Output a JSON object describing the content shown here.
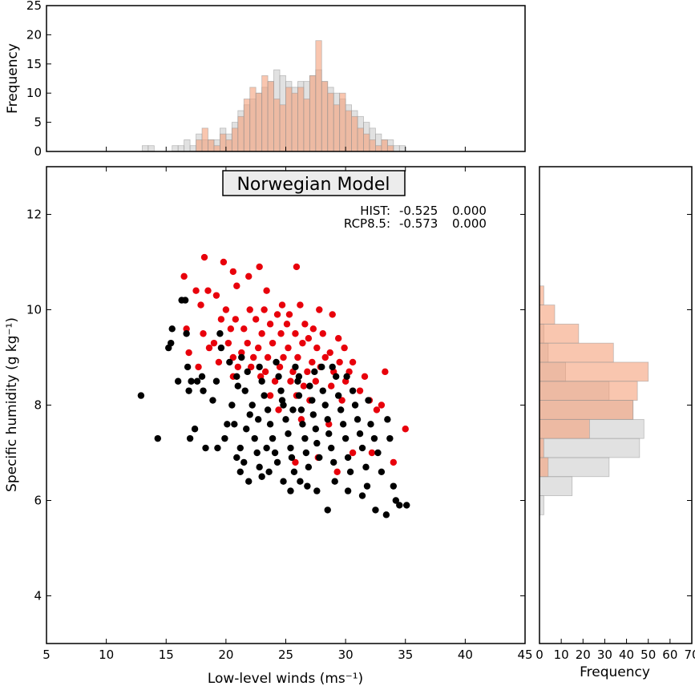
{
  "chart_data": {
    "type": "scatter",
    "title": "Norwegian Model",
    "xlabel": "Low-level winds (ms⁻¹)",
    "ylabel": "Specific humidity (g kg⁻¹)",
    "xlim": [
      5,
      45
    ],
    "ylim": [
      3,
      13
    ],
    "xticks": [
      5,
      10,
      15,
      20,
      25,
      30,
      35,
      40,
      45
    ],
    "yticks": [
      4,
      6,
      8,
      10,
      12
    ],
    "stats": [
      {
        "label": "HIST:",
        "r": "-0.525",
        "p": "0.000"
      },
      {
        "label": "RCP8.5:",
        "r": "-0.573",
        "p": "0.000"
      }
    ],
    "colors": {
      "hist": "#000000",
      "rcp": "#e8000b",
      "hist_hist": "#c8c8c8",
      "rcp_hist": "#f5a07a"
    },
    "series": [
      {
        "key": "rcp",
        "points": [
          [
            18.2,
            11.1
          ],
          [
            19.8,
            11.0
          ],
          [
            20.6,
            10.8
          ],
          [
            22.8,
            10.9
          ],
          [
            25.9,
            10.9
          ],
          [
            16.5,
            10.7
          ],
          [
            21.9,
            10.7
          ],
          [
            18.5,
            10.4
          ],
          [
            17.5,
            10.4
          ],
          [
            20.9,
            10.5
          ],
          [
            23.4,
            10.4
          ],
          [
            19.2,
            10.3
          ],
          [
            24.7,
            10.1
          ],
          [
            26.2,
            10.1
          ],
          [
            27.8,
            10.0
          ],
          [
            17.9,
            10.1
          ],
          [
            20.0,
            10.0
          ],
          [
            22.0,
            10.0
          ],
          [
            23.2,
            10.0
          ],
          [
            24.3,
            9.9
          ],
          [
            25.3,
            9.9
          ],
          [
            28.9,
            9.9
          ],
          [
            19.6,
            9.8
          ],
          [
            20.8,
            9.8
          ],
          [
            22.5,
            9.8
          ],
          [
            23.7,
            9.7
          ],
          [
            25.1,
            9.7
          ],
          [
            26.6,
            9.7
          ],
          [
            27.3,
            9.6
          ],
          [
            16.7,
            9.6
          ],
          [
            18.1,
            9.5
          ],
          [
            20.4,
            9.6
          ],
          [
            21.5,
            9.6
          ],
          [
            23.0,
            9.5
          ],
          [
            24.6,
            9.5
          ],
          [
            25.8,
            9.5
          ],
          [
            26.9,
            9.4
          ],
          [
            28.1,
            9.5
          ],
          [
            29.4,
            9.4
          ],
          [
            19.0,
            9.3
          ],
          [
            20.2,
            9.3
          ],
          [
            21.8,
            9.3
          ],
          [
            22.7,
            9.2
          ],
          [
            23.9,
            9.3
          ],
          [
            25.2,
            9.2
          ],
          [
            26.4,
            9.3
          ],
          [
            27.6,
            9.2
          ],
          [
            28.7,
            9.1
          ],
          [
            29.9,
            9.2
          ],
          [
            16.9,
            9.1
          ],
          [
            18.6,
            9.2
          ],
          [
            20.6,
            9.0
          ],
          [
            21.3,
            9.1
          ],
          [
            22.3,
            9.0
          ],
          [
            23.5,
            9.0
          ],
          [
            24.8,
            9.0
          ],
          [
            26.0,
            9.0
          ],
          [
            27.2,
            8.9
          ],
          [
            28.3,
            9.0
          ],
          [
            29.5,
            8.9
          ],
          [
            30.6,
            8.9
          ],
          [
            17.7,
            8.8
          ],
          [
            19.4,
            8.9
          ],
          [
            21.0,
            8.8
          ],
          [
            22.1,
            8.8
          ],
          [
            23.3,
            8.7
          ],
          [
            24.5,
            8.8
          ],
          [
            25.6,
            8.7
          ],
          [
            26.8,
            8.7
          ],
          [
            27.9,
            8.8
          ],
          [
            29.0,
            8.7
          ],
          [
            30.3,
            8.7
          ],
          [
            31.6,
            8.6
          ],
          [
            33.3,
            8.7
          ],
          [
            20.6,
            8.6
          ],
          [
            22.9,
            8.6
          ],
          [
            24.1,
            8.5
          ],
          [
            25.4,
            8.5
          ],
          [
            26.5,
            8.4
          ],
          [
            27.5,
            8.5
          ],
          [
            28.8,
            8.4
          ],
          [
            30.0,
            8.5
          ],
          [
            31.2,
            8.3
          ],
          [
            32.0,
            8.1
          ],
          [
            33.0,
            8.0
          ],
          [
            23.7,
            8.2
          ],
          [
            25.9,
            8.2
          ],
          [
            27.0,
            8.1
          ],
          [
            29.7,
            8.1
          ],
          [
            32.6,
            7.9
          ],
          [
            24.4,
            7.9
          ],
          [
            26.3,
            7.7
          ],
          [
            28.6,
            7.6
          ],
          [
            35.0,
            7.5
          ],
          [
            27.7,
            6.9
          ],
          [
            30.6,
            7.0
          ],
          [
            32.2,
            7.0
          ],
          [
            34.0,
            6.8
          ],
          [
            25.8,
            6.8
          ],
          [
            29.3,
            6.6
          ]
        ]
      },
      {
        "key": "hist",
        "points": [
          [
            12.9,
            8.2
          ],
          [
            14.3,
            7.3
          ],
          [
            15.2,
            9.2
          ],
          [
            15.5,
            9.6
          ],
          [
            15.4,
            9.3
          ],
          [
            16.3,
            10.2
          ],
          [
            16.6,
            10.2
          ],
          [
            16.7,
            9.5
          ],
          [
            16.0,
            8.5
          ],
          [
            16.9,
            8.3
          ],
          [
            17.1,
            8.5
          ],
          [
            17.6,
            8.5
          ],
          [
            18.1,
            8.3
          ],
          [
            16.8,
            8.8
          ],
          [
            17.0,
            7.3
          ],
          [
            18.3,
            7.1
          ],
          [
            18.0,
            8.6
          ],
          [
            19.5,
            9.5
          ],
          [
            19.6,
            9.2
          ],
          [
            19.2,
            8.5
          ],
          [
            19.9,
            7.3
          ],
          [
            20.3,
            8.9
          ],
          [
            20.9,
            8.6
          ],
          [
            21.3,
            9.0
          ],
          [
            21.0,
            8.4
          ],
          [
            20.5,
            8.0
          ],
          [
            20.7,
            7.6
          ],
          [
            21.8,
            8.7
          ],
          [
            21.6,
            8.3
          ],
          [
            22.2,
            8.0
          ],
          [
            22.0,
            7.8
          ],
          [
            21.7,
            7.5
          ],
          [
            22.4,
            7.3
          ],
          [
            22.6,
            7.0
          ],
          [
            21.2,
            7.1
          ],
          [
            20.9,
            6.9
          ],
          [
            21.5,
            6.8
          ],
          [
            22.8,
            6.7
          ],
          [
            23.0,
            8.5
          ],
          [
            23.2,
            8.2
          ],
          [
            23.5,
            7.9
          ],
          [
            23.7,
            7.6
          ],
          [
            23.9,
            7.3
          ],
          [
            24.1,
            7.0
          ],
          [
            24.3,
            6.8
          ],
          [
            22.8,
            8.8
          ],
          [
            24.2,
            8.9
          ],
          [
            24.4,
            8.6
          ],
          [
            24.6,
            8.3
          ],
          [
            24.8,
            8.0
          ],
          [
            25.0,
            7.7
          ],
          [
            25.2,
            7.4
          ],
          [
            25.4,
            7.1
          ],
          [
            25.5,
            6.9
          ],
          [
            25.7,
            6.6
          ],
          [
            25.8,
            8.8
          ],
          [
            26.0,
            8.5
          ],
          [
            26.1,
            8.2
          ],
          [
            26.3,
            7.9
          ],
          [
            26.4,
            7.6
          ],
          [
            26.6,
            7.3
          ],
          [
            26.7,
            7.0
          ],
          [
            26.9,
            6.7
          ],
          [
            27.0,
            8.4
          ],
          [
            27.2,
            8.1
          ],
          [
            27.3,
            7.8
          ],
          [
            27.5,
            7.5
          ],
          [
            27.6,
            7.2
          ],
          [
            27.8,
            6.9
          ],
          [
            28.0,
            8.8
          ],
          [
            28.1,
            8.3
          ],
          [
            28.3,
            8.0
          ],
          [
            28.5,
            7.7
          ],
          [
            28.6,
            7.4
          ],
          [
            28.8,
            7.1
          ],
          [
            29.0,
            6.8
          ],
          [
            29.2,
            8.6
          ],
          [
            29.4,
            8.2
          ],
          [
            29.6,
            7.9
          ],
          [
            29.8,
            7.6
          ],
          [
            30.0,
            7.3
          ],
          [
            30.2,
            6.9
          ],
          [
            30.4,
            6.6
          ],
          [
            30.6,
            8.3
          ],
          [
            30.8,
            8.0
          ],
          [
            31.0,
            7.7
          ],
          [
            31.2,
            7.4
          ],
          [
            31.4,
            7.1
          ],
          [
            31.7,
            6.7
          ],
          [
            31.9,
            8.1
          ],
          [
            32.1,
            7.6
          ],
          [
            32.4,
            7.3
          ],
          [
            32.7,
            7.0
          ],
          [
            33.0,
            6.6
          ],
          [
            33.5,
            7.7
          ],
          [
            33.7,
            7.3
          ],
          [
            34.0,
            6.3
          ],
          [
            34.2,
            6.0
          ],
          [
            34.5,
            5.9
          ],
          [
            35.1,
            5.9
          ],
          [
            33.4,
            5.7
          ],
          [
            32.5,
            5.8
          ],
          [
            31.8,
            6.3
          ],
          [
            30.2,
            6.2
          ],
          [
            28.5,
            5.8
          ],
          [
            27.6,
            6.2
          ],
          [
            26.8,
            6.3
          ],
          [
            26.2,
            6.4
          ],
          [
            25.4,
            6.2
          ],
          [
            24.8,
            6.4
          ],
          [
            23.6,
            6.6
          ],
          [
            23.0,
            6.5
          ],
          [
            21.9,
            6.4
          ],
          [
            21.2,
            6.6
          ],
          [
            20.1,
            7.6
          ],
          [
            19.3,
            7.1
          ],
          [
            18.9,
            8.1
          ],
          [
            17.4,
            7.5
          ],
          [
            29.1,
            6.4
          ],
          [
            31.4,
            6.1
          ],
          [
            26.1,
            8.6
          ],
          [
            27.4,
            8.7
          ],
          [
            28.9,
            8.8
          ],
          [
            30.1,
            8.6
          ],
          [
            24.7,
            8.1
          ],
          [
            25.6,
            7.9
          ],
          [
            23.4,
            7.1
          ],
          [
            22.7,
            7.7
          ]
        ]
      }
    ],
    "top_hist": {
      "ylabel": "Frequency",
      "ylim": [
        0,
        25
      ],
      "yticks": [
        0,
        5,
        10,
        15,
        20,
        25
      ],
      "bin_width": 0.5,
      "bin_start": 13,
      "hist": [
        1,
        1,
        0,
        0,
        0,
        1,
        1,
        2,
        1,
        3,
        2,
        2,
        2,
        4,
        3,
        5,
        7,
        8,
        9,
        10,
        11,
        12,
        14,
        13,
        12,
        11,
        12,
        12,
        13,
        14,
        12,
        11,
        10,
        9,
        8,
        7,
        6,
        5,
        4,
        3,
        2,
        2,
        1,
        1
      ],
      "rcp": [
        0,
        0,
        0,
        0,
        0,
        0,
        0,
        0,
        0,
        2,
        4,
        2,
        1,
        3,
        2,
        4,
        6,
        9,
        11,
        10,
        13,
        12,
        9,
        8,
        11,
        10,
        11,
        9,
        13,
        19,
        12,
        10,
        8,
        10,
        7,
        6,
        4,
        3,
        2,
        1,
        2,
        1,
        0,
        0
      ]
    },
    "right_hist": {
      "xlabel": "Frequency",
      "xlim": [
        0,
        70
      ],
      "xticks": [
        0,
        10,
        20,
        30,
        40,
        50,
        60,
        70
      ],
      "bin_edges": [
        5.7,
        6.1,
        6.5,
        6.9,
        7.3,
        7.7,
        8.1,
        8.5,
        8.9,
        9.3,
        9.7,
        10.1,
        10.5,
        10.9
      ],
      "hist": [
        2,
        15,
        32,
        46,
        48,
        43,
        32,
        12,
        4,
        2,
        0,
        0,
        0
      ],
      "rcp": [
        0,
        0,
        4,
        2,
        23,
        43,
        45,
        50,
        34,
        18,
        7,
        2,
        0
      ]
    }
  }
}
